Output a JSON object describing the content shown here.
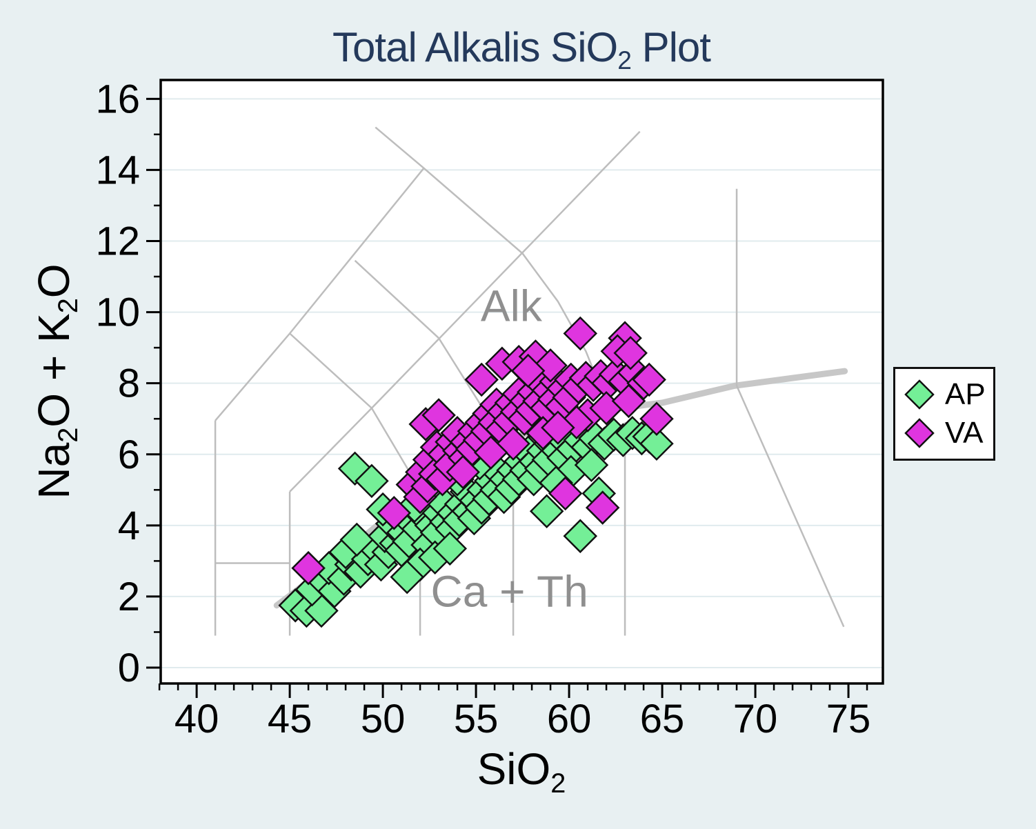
{
  "title": {
    "part1": "Total Alkalis SiO",
    "sub": "2",
    "part2": " Plot"
  },
  "x_axis_title": {
    "part1": "SiO",
    "sub": "2"
  },
  "y_axis_title": {
    "p1": "Na",
    "s1": "2",
    "p2": "O + K",
    "s2": "2",
    "p3": "O"
  },
  "legend": {
    "items": [
      {
        "label": "AP",
        "color": "#74EF97"
      },
      {
        "label": "VA",
        "color": "#DF35DF"
      }
    ]
  },
  "colors": {
    "background": "#E8F0F2",
    "plot_background": "#FFFFFF",
    "grid": "#E0EBEE",
    "frame": "#000000",
    "boundary_thin": "#BDBDBD",
    "boundary_thick": "#C7C7C7",
    "annotation": "#8F8F8F",
    "title": "#24395B",
    "marker_stroke": "#111111"
  },
  "chart_data": {
    "type": "scatter",
    "title": "Total Alkalis SiO2 Plot",
    "xlabel": "SiO2",
    "ylabel": "Na2O + K2O",
    "xlim": [
      38.07,
      76.85
    ],
    "ylim": [
      -0.446,
      16.53
    ],
    "grid": "horizontal-only",
    "legend_position": "right",
    "x_ticks": {
      "major": [
        40,
        45,
        50,
        55,
        60,
        65,
        70,
        75
      ],
      "minor": [
        38,
        39,
        41,
        42,
        43,
        44,
        46,
        47,
        48,
        49,
        51,
        52,
        53,
        54,
        56,
        57,
        58,
        59,
        61,
        62,
        63,
        64,
        66,
        67,
        68,
        69,
        71,
        72,
        73,
        74,
        76
      ]
    },
    "y_ticks": {
      "major": [
        0,
        2,
        4,
        6,
        8,
        10,
        12,
        14,
        16
      ],
      "minor": [
        1,
        3,
        5,
        7,
        9,
        11,
        13,
        15
      ]
    },
    "annotations": [
      {
        "text": "Alk",
        "x": 56.9,
        "y": 9.75
      },
      {
        "text": "Ca + Th",
        "x": 56.8,
        "y": 1.72
      }
    ],
    "boundaries": {
      "thin": [
        [
          [
            41,
            0.9
          ],
          [
            41,
            6.95
          ]
        ],
        [
          [
            41,
            6.95
          ],
          [
            45,
            9.4
          ],
          [
            52.2,
            14.05
          ]
        ],
        [
          [
            41,
            2.94
          ],
          [
            45,
            2.94
          ]
        ],
        [
          [
            45,
            0.9
          ],
          [
            45,
            4.95
          ]
        ],
        [
          [
            45,
            4.95
          ],
          [
            49.4,
            7.3
          ],
          [
            52,
            5
          ],
          [
            52,
            0.9
          ]
        ],
        [
          [
            45,
            9.4
          ],
          [
            49.4,
            7.3
          ]
        ],
        [
          [
            48.5,
            11.45
          ],
          [
            53,
            9.27
          ],
          [
            57,
            5.93
          ],
          [
            57,
            0.9
          ]
        ],
        [
          [
            49.4,
            7.3
          ],
          [
            63.8,
            15.08
          ]
        ],
        [
          [
            49.6,
            15.2
          ],
          [
            52.2,
            14.05
          ],
          [
            57.5,
            11.65
          ],
          [
            59.4,
            10.3
          ],
          [
            60.9,
            8.9
          ],
          [
            61.9,
            7.6
          ],
          [
            62.5,
            6.4
          ]
        ],
        [
          [
            63,
            6.9
          ],
          [
            63,
            0.9
          ]
        ],
        [
          [
            69,
            13.47
          ],
          [
            69,
            7.93
          ]
        ],
        [
          [
            69,
            7.93
          ],
          [
            74.75,
            1.15
          ]
        ]
      ],
      "thick": [
        [
          [
            44.3,
            1.75
          ],
          [
            45.2,
            2.1
          ],
          [
            48.1,
            3.3
          ],
          [
            50.5,
            4.35
          ],
          [
            52.3,
            5.1
          ],
          [
            54.5,
            5.85
          ],
          [
            57,
            6.45
          ],
          [
            59.5,
            6.95
          ],
          [
            62,
            7.25
          ],
          [
            65,
            7.45
          ],
          [
            68.9,
            7.93
          ],
          [
            74.8,
            8.34
          ]
        ]
      ]
    },
    "series": [
      {
        "name": "AP",
        "color": "#74EF97",
        "points": [
          [
            45.3,
            1.75
          ],
          [
            45.9,
            1.6
          ],
          [
            46.7,
            1.6
          ],
          [
            46.2,
            2.2
          ],
          [
            46.8,
            2.45
          ],
          [
            47.4,
            2.15
          ],
          [
            47.1,
            2.8
          ],
          [
            47.9,
            2.5
          ],
          [
            48.3,
            2.9
          ],
          [
            48.0,
            3.25
          ],
          [
            48.8,
            2.7
          ],
          [
            49.2,
            3.05
          ],
          [
            49.6,
            3.35
          ],
          [
            48.6,
            3.6
          ],
          [
            49.9,
            2.9
          ],
          [
            50.3,
            3.25
          ],
          [
            50.1,
            3.7
          ],
          [
            50.7,
            3.5
          ],
          [
            50.5,
            4.05
          ],
          [
            51.1,
            3.8
          ],
          [
            51.0,
            3.3
          ],
          [
            51.5,
            4.1
          ],
          [
            51.4,
            3.55
          ],
          [
            51.9,
            3.9
          ],
          [
            52.2,
            4.25
          ],
          [
            51.7,
            4.55
          ],
          [
            52.6,
            4.0
          ],
          [
            52.4,
            3.45
          ],
          [
            53.0,
            4.35
          ],
          [
            52.9,
            3.8
          ],
          [
            53.4,
            4.1
          ],
          [
            53.3,
            4.6
          ],
          [
            53.8,
            4.35
          ],
          [
            53.7,
            3.9
          ],
          [
            54.2,
            4.6
          ],
          [
            54.1,
            4.15
          ],
          [
            54.6,
            4.4
          ],
          [
            54.5,
            4.95
          ],
          [
            55.0,
            4.7
          ],
          [
            54.9,
            4.2
          ],
          [
            55.4,
            5.0
          ],
          [
            55.3,
            4.5
          ],
          [
            55.8,
            5.25
          ],
          [
            55.7,
            4.75
          ],
          [
            56.2,
            5.5
          ],
          [
            56.1,
            5.0
          ],
          [
            56.6,
            5.3
          ],
          [
            56.5,
            4.8
          ],
          [
            57.0,
            5.55
          ],
          [
            56.9,
            5.05
          ],
          [
            57.4,
            5.8
          ],
          [
            57.3,
            5.3
          ],
          [
            57.8,
            6.05
          ],
          [
            57.7,
            5.55
          ],
          [
            58.2,
            5.8
          ],
          [
            58.1,
            5.3
          ],
          [
            58.6,
            6.1
          ],
          [
            58.5,
            5.6
          ],
          [
            59.0,
            6.3
          ],
          [
            58.9,
            5.85
          ],
          [
            59.4,
            6.1
          ],
          [
            59.8,
            6.35
          ],
          [
            59.7,
            5.9
          ],
          [
            60.2,
            6.15
          ],
          [
            60.6,
            6.4
          ],
          [
            61.0,
            6.2
          ],
          [
            61.4,
            6.45
          ],
          [
            61.9,
            6.3
          ],
          [
            62.4,
            6.55
          ],
          [
            62.9,
            6.4
          ],
          [
            63.4,
            6.6
          ],
          [
            63.9,
            6.45
          ],
          [
            64.3,
            6.5
          ],
          [
            64.7,
            6.3
          ],
          [
            48.5,
            5.6
          ],
          [
            49.4,
            5.25
          ],
          [
            50.0,
            4.45
          ],
          [
            52.0,
            2.9
          ],
          [
            52.8,
            3.1
          ],
          [
            53.6,
            3.35
          ],
          [
            51.3,
            2.55
          ],
          [
            58.8,
            4.4
          ],
          [
            60.6,
            3.7
          ],
          [
            56.3,
            6.9
          ],
          [
            57.9,
            6.95
          ],
          [
            60.1,
            5.5
          ],
          [
            61.2,
            5.7
          ],
          [
            55.2,
            5.75
          ],
          [
            54.0,
            5.3
          ],
          [
            59.3,
            5.2
          ],
          [
            61.6,
            4.9
          ]
        ]
      },
      {
        "name": "VA",
        "color": "#DF35DF",
        "points": [
          [
            46.0,
            2.8
          ],
          [
            50.6,
            4.35
          ],
          [
            51.6,
            5.15
          ],
          [
            52.1,
            5.5
          ],
          [
            52.0,
            4.8
          ],
          [
            52.5,
            5.85
          ],
          [
            52.4,
            5.1
          ],
          [
            52.9,
            6.2
          ],
          [
            52.8,
            5.45
          ],
          [
            53.3,
            6.0
          ],
          [
            53.2,
            5.3
          ],
          [
            53.7,
            6.35
          ],
          [
            53.6,
            5.7
          ],
          [
            54.1,
            6.1
          ],
          [
            54.0,
            6.6
          ],
          [
            54.5,
            6.35
          ],
          [
            54.4,
            5.9
          ],
          [
            54.9,
            6.65
          ],
          [
            54.8,
            6.15
          ],
          [
            55.3,
            6.9
          ],
          [
            55.2,
            6.4
          ],
          [
            55.7,
            7.15
          ],
          [
            55.6,
            6.65
          ],
          [
            56.1,
            7.4
          ],
          [
            56.0,
            6.9
          ],
          [
            56.5,
            7.2
          ],
          [
            56.4,
            6.7
          ],
          [
            56.9,
            7.45
          ],
          [
            56.8,
            6.95
          ],
          [
            57.3,
            7.7
          ],
          [
            57.2,
            7.2
          ],
          [
            57.7,
            7.5
          ],
          [
            57.6,
            7.0
          ],
          [
            58.1,
            7.75
          ],
          [
            58.0,
            7.25
          ],
          [
            58.5,
            8.0
          ],
          [
            58.4,
            7.5
          ],
          [
            58.9,
            7.8
          ],
          [
            58.8,
            7.3
          ],
          [
            59.3,
            8.05
          ],
          [
            59.2,
            7.55
          ],
          [
            59.7,
            7.85
          ],
          [
            59.6,
            7.35
          ],
          [
            60.1,
            8.1
          ],
          [
            60.0,
            7.6
          ],
          [
            60.5,
            7.9
          ],
          [
            60.9,
            8.15
          ],
          [
            61.3,
            7.95
          ],
          [
            61.7,
            8.2
          ],
          [
            62.1,
            8.0
          ],
          [
            62.5,
            8.25
          ],
          [
            63.0,
            8.05
          ],
          [
            63.5,
            8.3
          ],
          [
            64.0,
            8.0
          ],
          [
            64.3,
            8.1
          ],
          [
            64.7,
            7.0
          ],
          [
            60.6,
            9.4
          ],
          [
            63.0,
            9.27
          ],
          [
            62.6,
            8.9
          ],
          [
            63.3,
            8.85
          ],
          [
            55.3,
            8.1
          ],
          [
            56.4,
            8.55
          ],
          [
            57.3,
            8.6
          ],
          [
            58.2,
            8.75
          ],
          [
            59.0,
            8.5
          ],
          [
            57.8,
            8.35
          ],
          [
            52.3,
            6.85
          ],
          [
            53.0,
            7.1
          ],
          [
            59.8,
            4.9
          ],
          [
            61.8,
            4.5
          ],
          [
            61.0,
            7.1
          ],
          [
            62.0,
            7.3
          ],
          [
            63.2,
            7.5
          ],
          [
            60.4,
            6.9
          ],
          [
            58.6,
            6.6
          ],
          [
            57.0,
            6.3
          ],
          [
            55.8,
            6.05
          ],
          [
            54.3,
            5.5
          ],
          [
            59.4,
            6.75
          ]
        ]
      }
    ]
  }
}
